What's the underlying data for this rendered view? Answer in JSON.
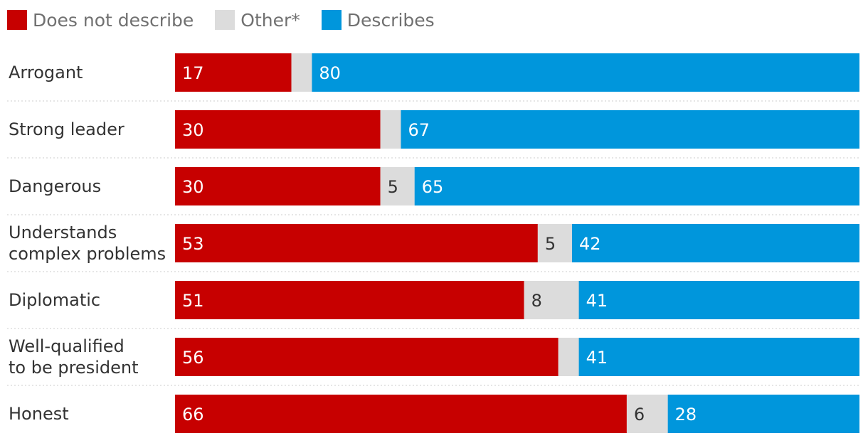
{
  "legend": [
    {
      "label": "Does not describe",
      "color": "#c70000"
    },
    {
      "label": "Other*",
      "color": "#dcdcdc"
    },
    {
      "label": "Describes",
      "color": "#0096dc"
    }
  ],
  "chart_data": {
    "type": "bar",
    "orientation": "horizontal",
    "stacked": true,
    "categories": [
      [
        "Arrogant"
      ],
      [
        "Strong leader"
      ],
      [
        "Dangerous"
      ],
      [
        "Understands",
        "complex problems"
      ],
      [
        "Diplomatic"
      ],
      [
        "Well-qualified",
        "to be president"
      ],
      [
        "Honest"
      ]
    ],
    "series": [
      {
        "name": "Does not describe",
        "color": "#c70000",
        "label_color": "#ffffff",
        "values": [
          17,
          30,
          30,
          53,
          51,
          56,
          66
        ],
        "shown": [
          true,
          true,
          true,
          true,
          true,
          true,
          true
        ]
      },
      {
        "name": "Other*",
        "color": "#dcdcdc",
        "label_color": "#333333",
        "values": [
          3,
          3,
          5,
          5,
          8,
          3,
          6
        ],
        "shown": [
          false,
          false,
          true,
          true,
          true,
          false,
          true
        ]
      },
      {
        "name": "Describes",
        "color": "#0096dc",
        "label_color": "#ffffff",
        "values": [
          80,
          67,
          65,
          42,
          41,
          41,
          28
        ],
        "shown": [
          true,
          true,
          true,
          true,
          true,
          true,
          true
        ]
      }
    ],
    "xlim": [
      0,
      100
    ],
    "grid": false,
    "legend_position": "top-left"
  }
}
